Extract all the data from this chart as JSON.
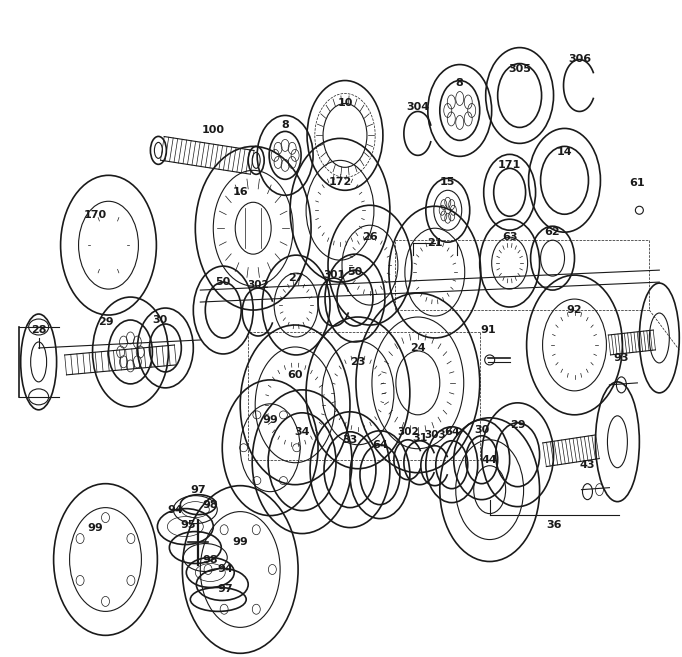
{
  "bg_color": "#ffffff",
  "line_color": "#1a1a1a",
  "figsize": [
    6.82,
    6.57
  ],
  "dpi": 100
}
